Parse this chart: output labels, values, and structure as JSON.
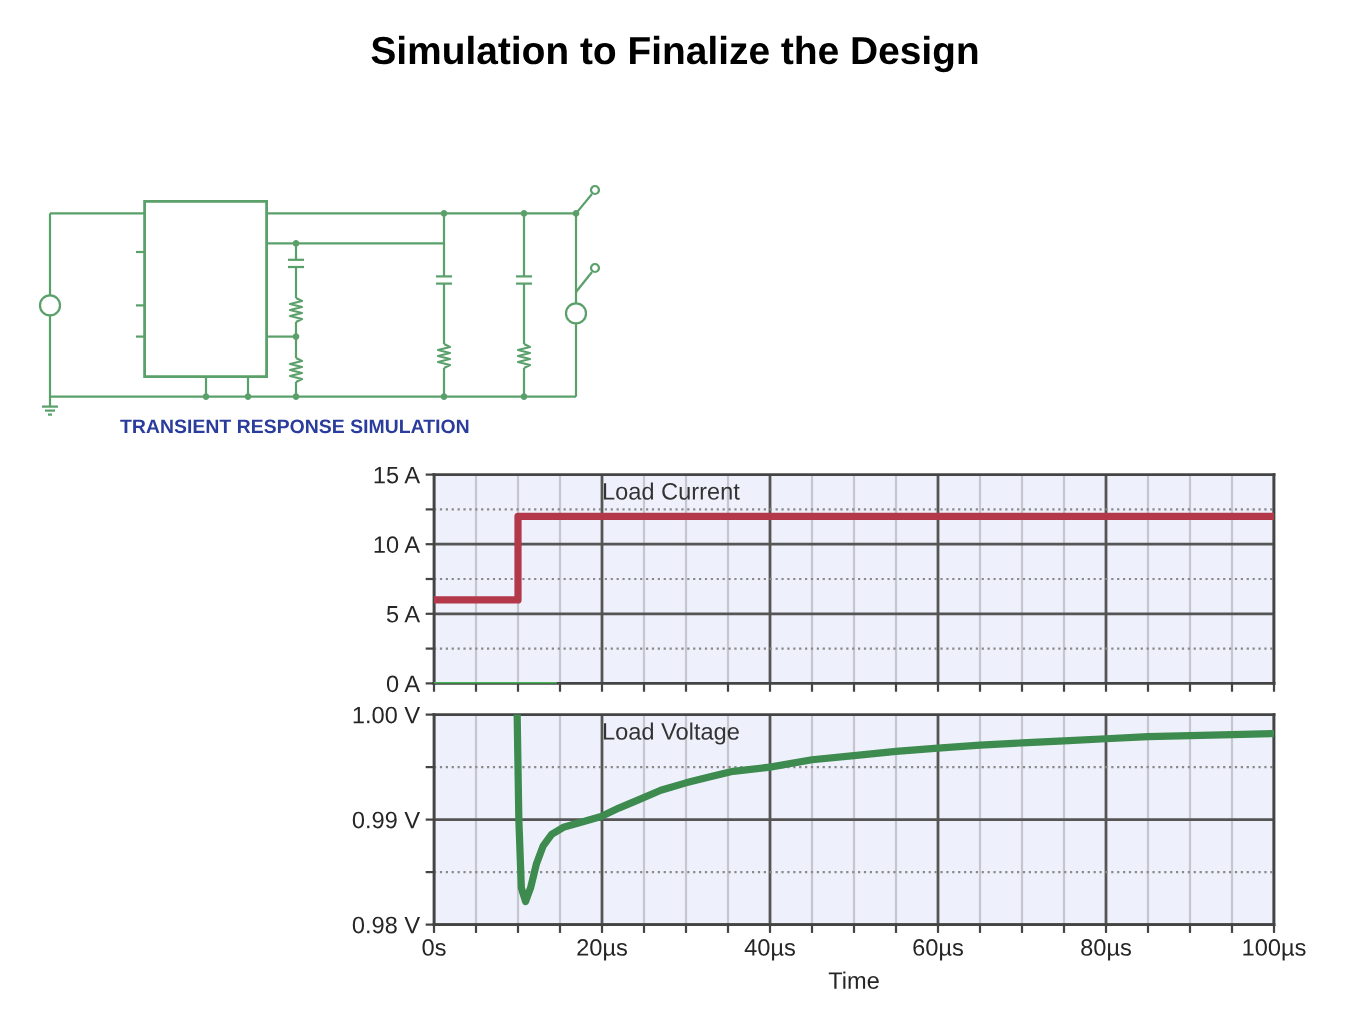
{
  "chart_data": [
    {
      "type": "step",
      "title": "Simulation to Finalize the Design",
      "annotations": [
        "TRANSIENT RESPONSE SIMULATION"
      ],
      "series": [
        {
          "name": "Load Current",
          "color": "#b3394a",
          "x": [
            0,
            10,
            100
          ],
          "values": [
            6,
            12,
            12
          ]
        },
        {
          "type": "line",
          "color": "#45b04f",
          "x": [
            0,
            14.5
          ],
          "values": [
            0,
            0
          ]
        }
      ],
      "xlim": [
        0,
        100
      ],
      "xticks": [
        0,
        {
          "value": 5,
          "label": null
        },
        {
          "value": 10,
          "label": null
        },
        {
          "value": 15,
          "label": null
        },
        20,
        {
          "value": 25,
          "label": null
        },
        {
          "value": 30,
          "label": null
        },
        {
          "value": 35,
          "label": null
        },
        40,
        {
          "value": 45,
          "label": null
        },
        {
          "value": 50,
          "label": null
        },
        {
          "value": 55,
          "label": null
        },
        60,
        {
          "value": 65,
          "label": null
        },
        {
          "value": 70,
          "label": null
        },
        {
          "value": 75,
          "label": null
        },
        80,
        {
          "value": 85,
          "label": null
        },
        {
          "value": 90,
          "label": null
        },
        {
          "value": 95,
          "label": null
        },
        100
      ],
      "ylim": [
        0,
        15
      ],
      "yticks": [
        {
          "value": 0,
          "label": "0 A"
        },
        {
          "value": 2.5,
          "label": null
        },
        {
          "value": 5,
          "label": "5 A"
        },
        {
          "value": 7.5,
          "label": null
        },
        {
          "value": 10,
          "label": "10 A"
        },
        {
          "value": 12.5,
          "label": null
        },
        {
          "value": 15,
          "label": "15 A"
        }
      ],
      "grid": true,
      "tick_labels": "y"
    },
    {
      "type": "line",
      "xlabel": "Time",
      "series": [
        {
          "name": "Load Voltage",
          "color": "#3d8b4f",
          "x": [
            9.9,
            10.1,
            10.4,
            10.9,
            11.5,
            12.2,
            13.0,
            14.0,
            15.5,
            17.3,
            19.9,
            22,
            24.4,
            27,
            30,
            33,
            35.6,
            40,
            45,
            50,
            55,
            60,
            65,
            70,
            75,
            80,
            85,
            90,
            95,
            100
          ],
          "values": [
            1.0,
            0.99,
            0.9835,
            0.9822,
            0.9835,
            0.9858,
            0.9875,
            0.9886,
            0.9893,
            0.9897,
            0.9903,
            0.9911,
            0.9919,
            0.9928,
            0.9935,
            0.9941,
            0.9946,
            0.995,
            0.9957,
            0.9961,
            0.9965,
            0.9968,
            0.9971,
            0.9973,
            0.9975,
            0.9977,
            0.9979,
            0.998,
            0.9981,
            0.9982
          ]
        }
      ],
      "xlim": [
        0,
        100
      ],
      "xticks": [
        {
          "value": 0,
          "label": "0s"
        },
        {
          "value": 5,
          "label": null
        },
        {
          "value": 10,
          "label": null
        },
        {
          "value": 15,
          "label": null
        },
        {
          "value": 20,
          "label": "20µs"
        },
        {
          "value": 25,
          "label": null
        },
        {
          "value": 30,
          "label": null
        },
        {
          "value": 35,
          "label": null
        },
        {
          "value": 40,
          "label": "40µs"
        },
        {
          "value": 45,
          "label": null
        },
        {
          "value": 50,
          "label": null
        },
        {
          "value": 55,
          "label": null
        },
        {
          "value": 60,
          "label": "60µs"
        },
        {
          "value": 65,
          "label": null
        },
        {
          "value": 70,
          "label": null
        },
        {
          "value": 75,
          "label": null
        },
        {
          "value": 80,
          "label": "80µs"
        },
        {
          "value": 85,
          "label": null
        },
        {
          "value": 90,
          "label": null
        },
        {
          "value": 95,
          "label": null
        },
        {
          "value": 100,
          "label": "100µs"
        }
      ],
      "ylim": [
        0.98,
        1.0
      ],
      "yticks": [
        {
          "value": 0.98,
          "label": "0.98 V"
        },
        {
          "value": 0.985,
          "label": null
        },
        {
          "value": 0.99,
          "label": "0.99 V"
        },
        {
          "value": 0.995,
          "label": null
        },
        {
          "value": 1.0,
          "label": "1.00 V"
        }
      ],
      "grid": true
    }
  ]
}
